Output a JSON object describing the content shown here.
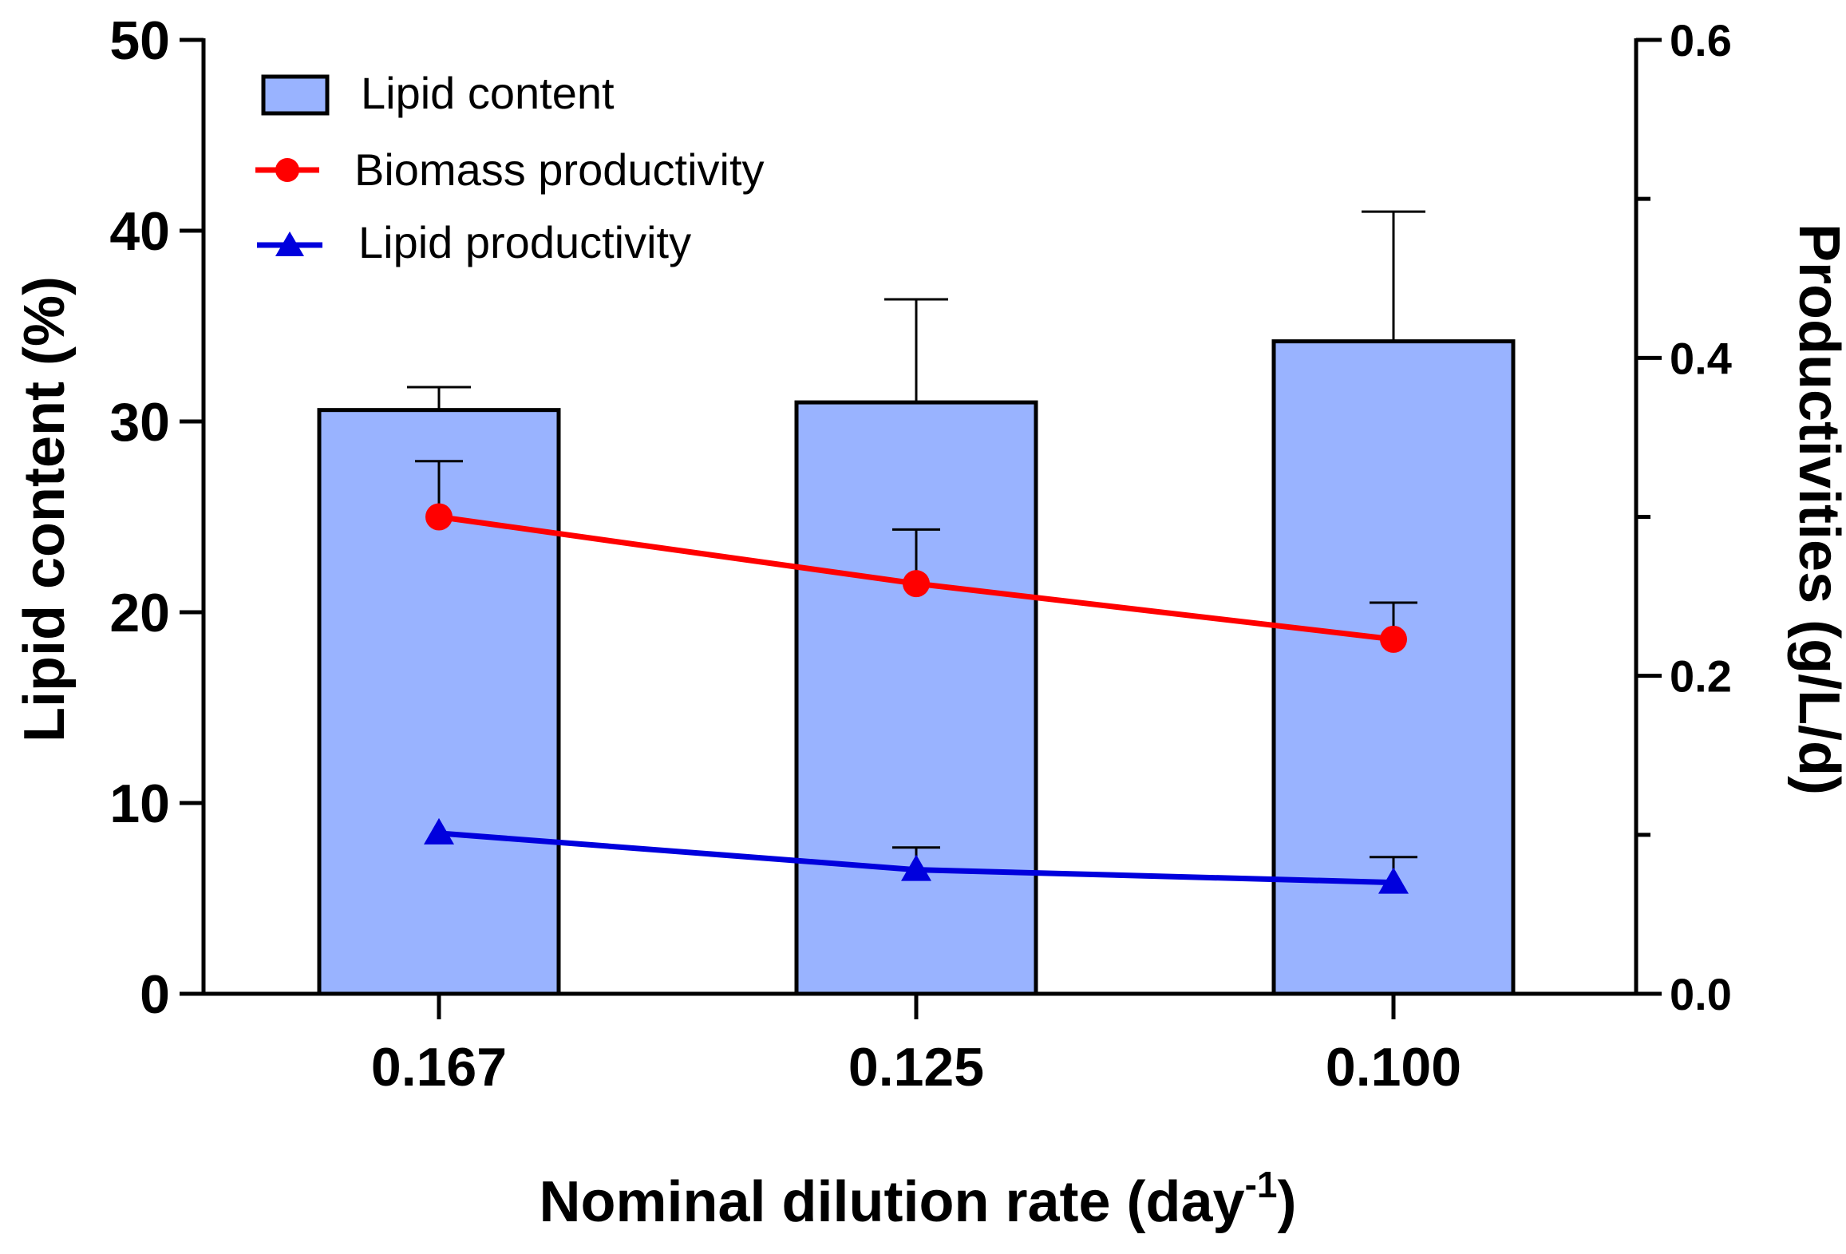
{
  "chart_data": {
    "type": "bar",
    "categories": [
      "0.167",
      "0.125",
      "0.100"
    ],
    "xlabel": "Nominal dilution rate (day",
    "xlabel_superscript": "-1",
    "xlabel_close": ")",
    "ylabel": "Lipid content (%)",
    "y2label": "Productivities (g/L/d)",
    "ylim": [
      0,
      50
    ],
    "y_ticks": [
      0,
      10,
      20,
      30,
      40,
      50
    ],
    "y_tick_labels": [
      "0",
      "10",
      "20",
      "30",
      "40",
      "50"
    ],
    "y2lim": [
      0,
      0.6
    ],
    "y2_ticks": [
      0,
      0.2,
      0.4,
      0.6
    ],
    "y2_tick_labels": [
      "0.0",
      "0.2",
      "0.4",
      "0.6"
    ],
    "legend_position": "top-left",
    "series": [
      {
        "name": "Lipid content",
        "kind": "bar",
        "axis": "left",
        "color": "#99b3ff",
        "values": [
          30.6,
          31.0,
          34.2
        ],
        "error_upper": [
          1.2,
          5.4,
          6.8
        ]
      },
      {
        "name": "Biomass productivity",
        "kind": "line",
        "axis": "right",
        "marker": "circle",
        "color": "#ff0000",
        "values": [
          0.3,
          0.258,
          0.223
        ],
        "error_upper": [
          0.035,
          0.034,
          0.023
        ]
      },
      {
        "name": "Lipid productivity",
        "kind": "line",
        "axis": "right",
        "marker": "triangle",
        "color": "#0000dd",
        "values": [
          0.101,
          0.078,
          0.07
        ],
        "error_upper": [
          0.0,
          0.014,
          0.016
        ]
      }
    ]
  }
}
